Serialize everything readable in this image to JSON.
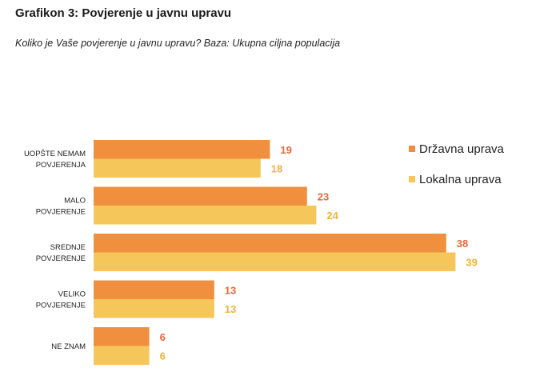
{
  "chart_data": {
    "type": "bar",
    "orientation": "horizontal",
    "title": "Grafikon 3: Povjerenje u javnu upravu",
    "subtitle": "Koliko je Vaše povjerenje u javnu upravu? Baza: Ukupna ciljna populacija",
    "categories": [
      [
        "UOPŠTE NEMAM",
        "POVJERENJA"
      ],
      [
        "MALO",
        "POVJERENJE"
      ],
      [
        "SREDNJE",
        "POVJERENJE"
      ],
      [
        "VELIKO",
        "POVJERENJE"
      ],
      [
        "NE ZNAM"
      ]
    ],
    "series": [
      {
        "name": "Državna uprava",
        "values": [
          19,
          23,
          38,
          13,
          6
        ],
        "color": "#F0903F",
        "label_color": "#E8673A"
      },
      {
        "name": "Lokalna uprava",
        "values": [
          18,
          24,
          39,
          13,
          6
        ],
        "color": "#F5C75A",
        "label_color": "#F0B23A"
      }
    ],
    "xlim": [
      0,
      40
    ],
    "grid": false,
    "legend": "right",
    "data_labels": true
  }
}
